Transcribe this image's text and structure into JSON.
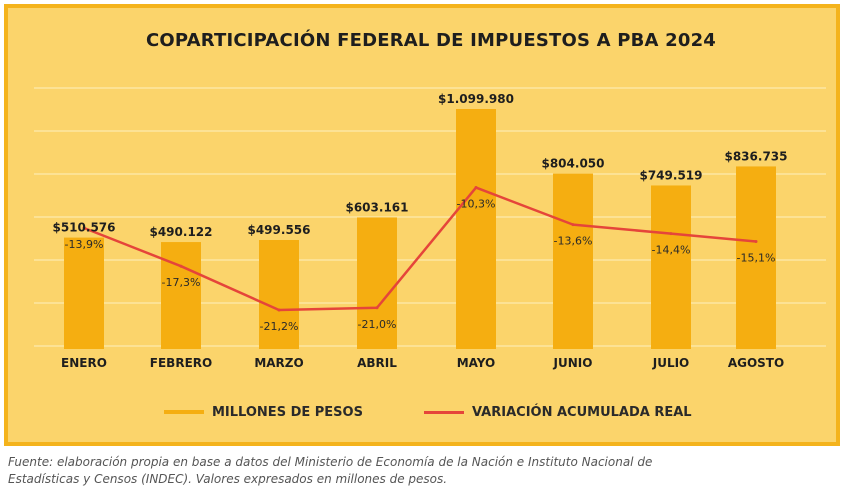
{
  "colors": {
    "background": "#fbd46b",
    "border": "#f4b31c",
    "bar": "#f5ae11",
    "line": "#e5453a",
    "grid": "#fde9ae",
    "text": "#1e1e1e"
  },
  "chart_data": {
    "type": "bar",
    "title": "COPARTICIPACIÓN FEDERAL DE IMPUESTOS A PBA 2024",
    "categories": [
      "ENERO",
      "FEBRERO",
      "MARZO",
      "ABRIL",
      "MAYO",
      "JUNIO",
      "JULIO",
      "AGOSTO"
    ],
    "series": [
      {
        "name": "MILLONES DE PESOS",
        "type": "bar",
        "values": [
          510576,
          490122,
          499556,
          603161,
          1099980,
          804050,
          749519,
          836735
        ],
        "labels": [
          "$510.576",
          "$490.122",
          "$499.556",
          "$603.161",
          "$1.099.980",
          "$804.050",
          "$749.519",
          "$836.735"
        ]
      },
      {
        "name": "VARIACIÓN ACUMULADA REAL",
        "type": "line",
        "values": [
          -13.9,
          -17.3,
          -21.2,
          -21.0,
          -10.3,
          -13.6,
          -14.4,
          -15.1
        ],
        "labels": [
          "-13,9%",
          "-17,3%",
          "-21,2%",
          "-21,0%",
          "-10,3%",
          "-13,6%",
          "-14,4%",
          "-15,1%"
        ]
      }
    ],
    "ylim": [
      0,
      1200000
    ],
    "y2lim": [
      -25,
      -5
    ],
    "grid": true,
    "legend": "bottom"
  },
  "legend": {
    "bar_label": "MILLONES DE PESOS",
    "line_label": "VARIACIÓN ACUMULADA REAL"
  },
  "footnote": {
    "line1": "Fuente: elaboración propia en base a datos del Ministerio de Economía de la Nación e Instituto Nacional de",
    "line2": "Estadísticas y Censos (INDEC). Valores expresados en millones de pesos."
  }
}
